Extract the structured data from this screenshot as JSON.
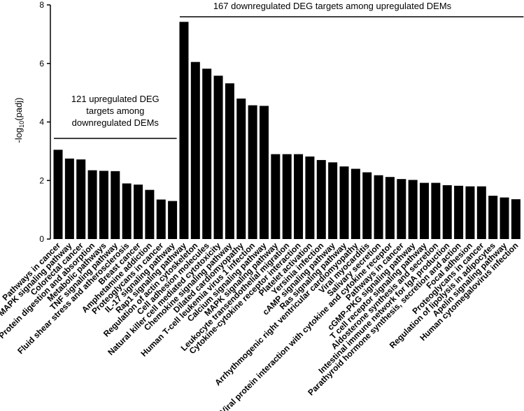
{
  "chart_data": {
    "type": "bar",
    "title": "",
    "xlabel": "",
    "ylabel": "-log10(padj)",
    "ylabel_parts": {
      "pre": "-log",
      "sub": "10",
      "post": "(padj)"
    },
    "ylim": [
      0,
      8
    ],
    "yticks": [
      "0",
      "2",
      "4",
      "6",
      "8"
    ],
    "grid": false,
    "color": "#000000",
    "categories": [
      "Pathways in cancer",
      "MAPK signaling pathway",
      "Colorectal cancer",
      "Protein digestion and absorption",
      "Metabolic pathways",
      "TNF signaling pathway",
      "Fluid shear stress and atherosclerosis",
      "Breast cancer",
      "Amphetamine addiction",
      "Proteoglycans in cancer",
      "IL-17 signaling pathway",
      "Rap1 signaling pathway",
      "Regulation of actin cytoskeleton",
      "Cell adhesion molecules",
      "Natural killer cell mediated cytotoxicity",
      "Chemokine signaling pathway",
      "Dilated cardiomyopathy",
      "Human T-cell leukemia virus 1 infection",
      "Calcium signaling pathway",
      "MAPK signaling pathway",
      "Leukocyte transendothelial migration",
      "Cytokine-cytokine receptor interaction",
      "Platelet activation",
      "Yersinia infection",
      "cAMP signaling pathway",
      "Ras signaling pathway",
      "Arrhythmogenic right ventricular cardiomyopathy",
      "Viral myocarditis",
      "Salivary secretion",
      "Viral protein interaction with cytokine and cytokine receptor",
      "Pathways in cancer",
      "cGMP-PKG signaling pathway",
      "T cell receptor signaling pathway",
      "Aldosterone synthesis and secretion",
      "Intestinal immune network for IgA production",
      "Parathyroid hormone synthesis, secretion and action",
      "Focal adhesion",
      "Proteoglycans in cancer",
      "Regulation of lipolysis in adipocytes",
      "Apelin signaling pathway",
      "Human cytomegalovirus infection"
    ],
    "values": [
      3.05,
      2.75,
      2.72,
      2.35,
      2.33,
      2.32,
      1.9,
      1.86,
      1.68,
      1.35,
      1.3,
      7.42,
      6.05,
      5.82,
      5.58,
      5.32,
      4.8,
      4.57,
      4.55,
      2.9,
      2.9,
      2.9,
      2.82,
      2.7,
      2.62,
      2.48,
      2.4,
      2.28,
      2.18,
      2.12,
      2.05,
      2.02,
      1.92,
      1.92,
      1.84,
      1.82,
      1.8,
      1.8,
      1.48,
      1.42,
      1.36
    ],
    "groups": [
      {
        "label_lines": [
          "121 upregulated DEG",
          "targets among",
          "downregulated DEMs"
        ],
        "start": 0,
        "end": 10
      },
      {
        "label_lines": [
          "167 downregulated DEG targets among upregulated DEMs"
        ],
        "start": 11,
        "end": 40
      }
    ]
  }
}
